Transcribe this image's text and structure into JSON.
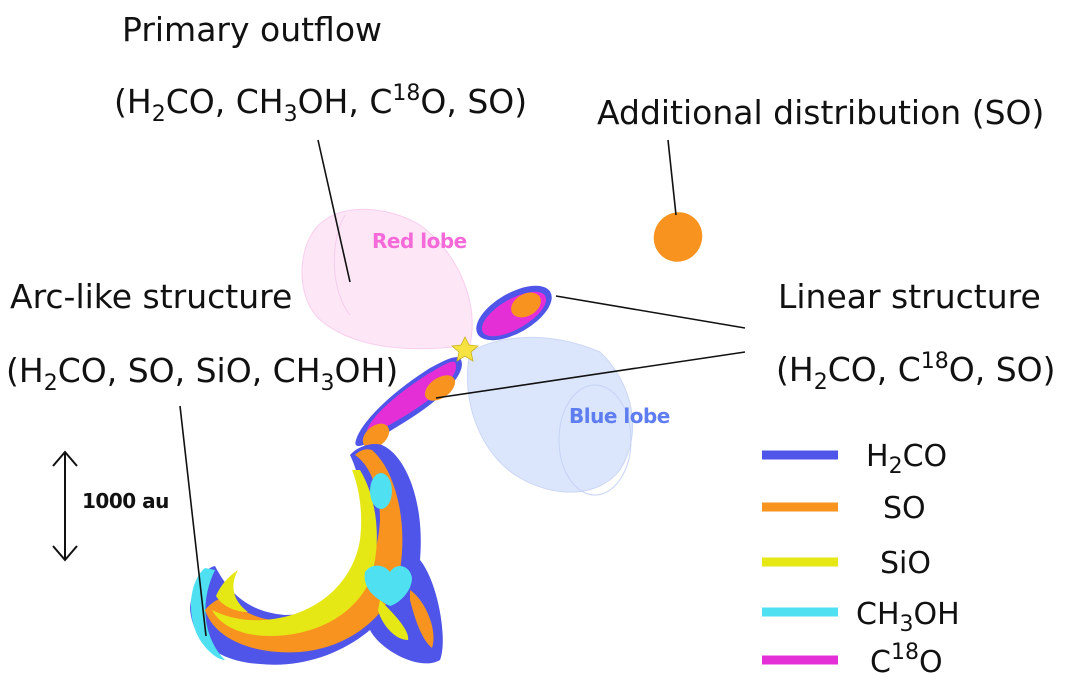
{
  "labels": {
    "primary_outflow": {
      "title": "Primary outflow",
      "species": [
        "H",
        "2",
        "CO, CH",
        "3",
        "OH, C",
        "18",
        "O, SO)"
      ],
      "open_paren": "("
    },
    "additional": "Additional distribution (SO)",
    "arc": {
      "title": "Arc-like structure",
      "open_paren": "(",
      "species": [
        "H",
        "2",
        "CO, SO, SiO, CH",
        "3",
        "OH)"
      ]
    },
    "linear": {
      "title": "Linear structure",
      "open_paren": "(",
      "species": [
        "H",
        "2",
        "CO, C",
        "18",
        "O, SO)"
      ]
    },
    "red_lobe": "Red lobe",
    "blue_lobe": "Blue lobe",
    "scale": "1000 au"
  },
  "legend": [
    {
      "name": "H2CO",
      "parts": [
        "H",
        "2",
        "CO"
      ],
      "color": "#4f55e8"
    },
    {
      "name": "SO",
      "parts": [
        "SO",
        "",
        ""
      ],
      "color": "#f7931e"
    },
    {
      "name": "SiO",
      "parts": [
        "SiO",
        "",
        ""
      ],
      "color": "#e6e816"
    },
    {
      "name": "CH3OH",
      "parts": [
        "CH",
        "3",
        "OH"
      ],
      "color": "#4fe0f2"
    },
    {
      "name": "C18O",
      "parts": [
        "C",
        "18",
        "O"
      ],
      "color": "#e52fd6"
    }
  ],
  "colors": {
    "h2co": "#4f55e8",
    "so": "#f7931e",
    "sio": "#e6e816",
    "ch3oh": "#4fe0f2",
    "c18o": "#e52fd6",
    "red_lobe_fill": "#fde6f6",
    "red_lobe_text": "#f56ad8",
    "blue_lobe_fill": "#dbe5fb",
    "blue_lobe_text": "#5d7df0",
    "star": "#f6e341"
  }
}
